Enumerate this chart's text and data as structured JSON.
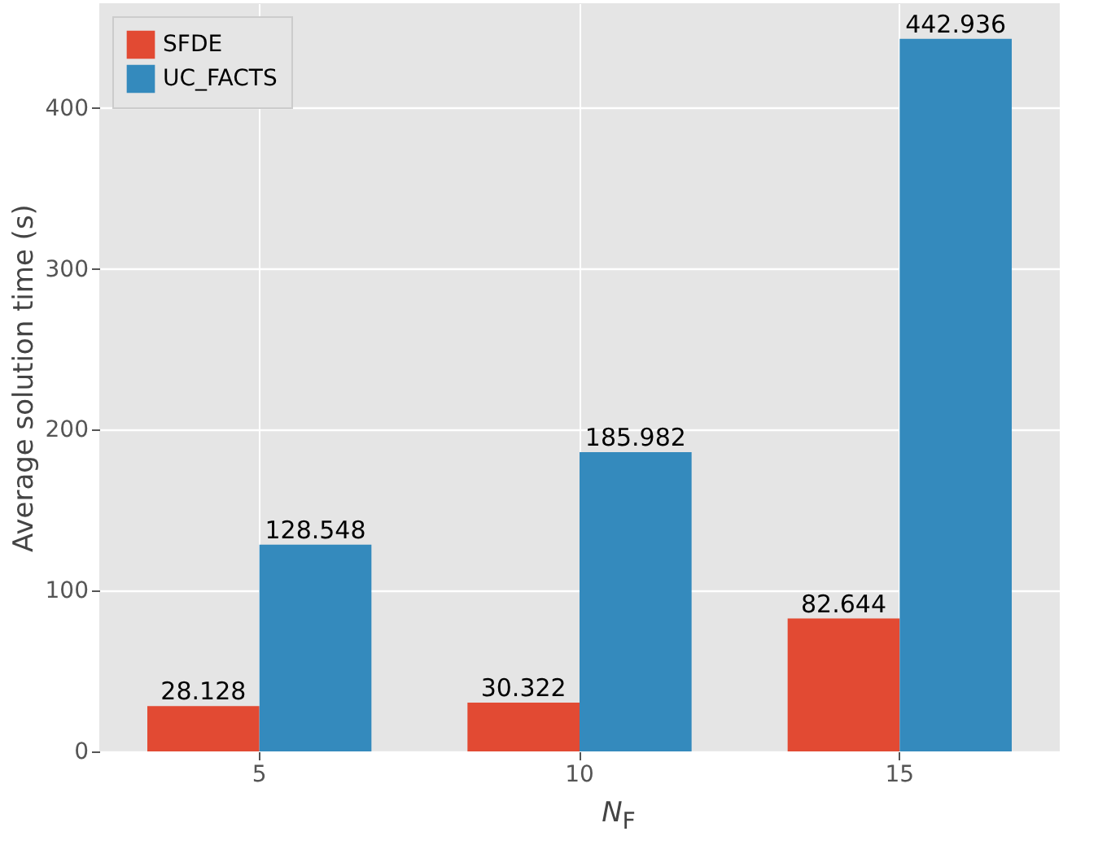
{
  "chart_data": {
    "type": "bar",
    "xlabel": "N$_{F}$",
    "ylabel": "Average solution time (s)",
    "categories": [
      "5",
      "10",
      "15"
    ],
    "series": [
      {
        "name": "SFDE",
        "color": "#e24a33",
        "values": [
          28.128,
          30.322,
          82.644
        ]
      },
      {
        "name": "UC_FACTS",
        "color": "#348abd",
        "values": [
          128.548,
          185.982,
          442.936
        ]
      }
    ],
    "ylim": [
      0,
      465.1
    ],
    "yticks": [
      0,
      100,
      200,
      300,
      400
    ],
    "grid": true,
    "legend": "top left",
    "data_labels": true
  }
}
